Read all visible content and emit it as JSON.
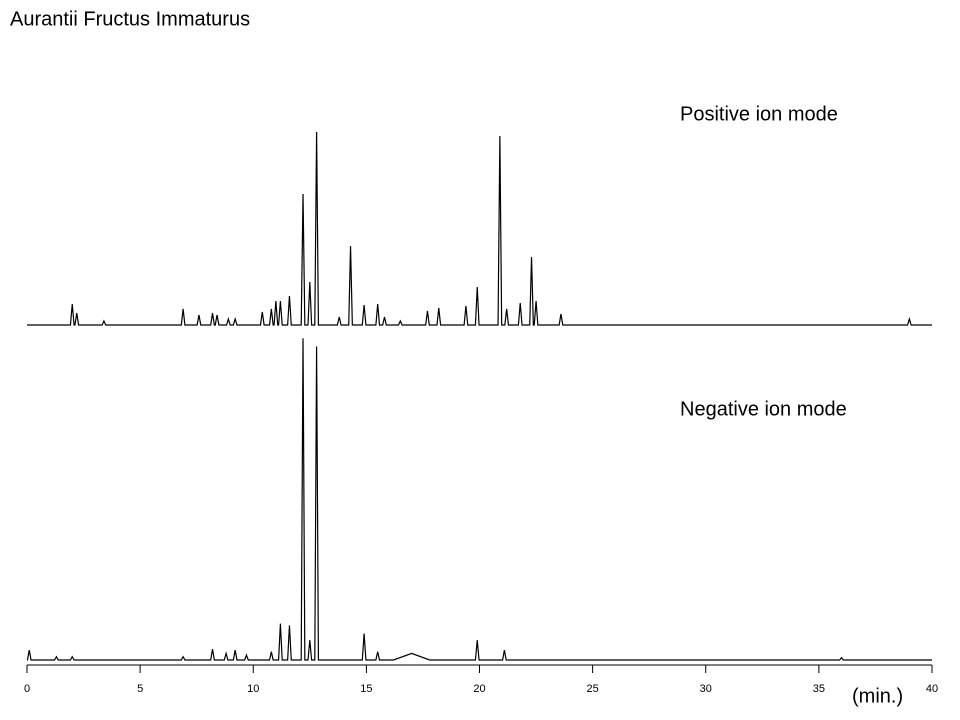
{
  "chart_data": {
    "type": "line",
    "title": "Aurantii  Fructus  Immaturus",
    "x_label": "(min.)",
    "xlim": [
      0,
      40
    ],
    "xticks": [
      0,
      5,
      10,
      15,
      20,
      25,
      30,
      35,
      40
    ],
    "ylim": [
      0,
      100
    ],
    "series": [
      {
        "name": "Positive ion mode",
        "color": "#000000",
        "x": [
          0,
          1.92,
          2,
          2.08,
          2.12,
          2.2,
          2.28,
          3.32,
          3.4,
          3.48,
          6.82,
          6.9,
          6.98,
          7.52,
          7.6,
          7.68,
          8.12,
          8.2,
          8.28,
          8.32,
          8.4,
          8.48,
          8.82,
          8.9,
          8.98,
          9.12,
          9.2,
          9.28,
          10.32,
          10.4,
          10.48,
          10.72,
          10.8,
          10.88,
          10.92,
          11,
          11.08,
          11.12,
          11.2,
          11.28,
          11.52,
          11.6,
          11.68,
          12.12,
          12.2,
          12.28,
          12.42,
          12.5,
          12.58,
          12.72,
          12.8,
          12.88,
          13.72,
          13.8,
          13.88,
          14.22,
          14.3,
          14.38,
          14.82,
          14.9,
          14.98,
          15.42,
          15.5,
          15.58,
          15.72,
          15.8,
          15.88,
          16.42,
          16.5,
          16.58,
          17.62,
          17.7,
          17.78,
          18.12,
          18.2,
          18.28,
          19.32,
          19.4,
          19.48,
          19.82,
          19.9,
          19.98,
          20.82,
          20.9,
          20.98,
          21.12,
          21.2,
          21.28,
          21.72,
          21.8,
          21.88,
          22.22,
          22.3,
          22.38,
          22.42,
          22.5,
          22.58,
          23.52,
          23.6,
          23.68,
          38.92,
          39,
          39.08,
          40
        ],
        "values": [
          0,
          0,
          10.5,
          0,
          0,
          6,
          0,
          0,
          2,
          0,
          0,
          8,
          0,
          0,
          5,
          0,
          0,
          6,
          0,
          0,
          5,
          0,
          0,
          3,
          0,
          0,
          3,
          0,
          0,
          6.5,
          0,
          0,
          8,
          0,
          0,
          12,
          0,
          0,
          12,
          0,
          0,
          14.5,
          0,
          0,
          65.5,
          0,
          0,
          21.5,
          0,
          0,
          96.5,
          0,
          0,
          4,
          0,
          0,
          39.5,
          0,
          0,
          10,
          0,
          0,
          10.5,
          0,
          0,
          4,
          0,
          0,
          2,
          0,
          0,
          7,
          0,
          0,
          8.5,
          0,
          0,
          9.5,
          0,
          0,
          19,
          0,
          0,
          94.5,
          0,
          0,
          8,
          0,
          0,
          11,
          0,
          0,
          34,
          0,
          0,
          12,
          0,
          0,
          5.5,
          0,
          0,
          3,
          0,
          0
        ]
      },
      {
        "name": "Negative ion mode",
        "color": "#000000",
        "x": [
          0,
          0.02,
          0.1,
          0.18,
          1.22,
          1.3,
          1.38,
          1.92,
          2,
          2.08,
          6.82,
          6.9,
          6.98,
          8.12,
          8.2,
          8.28,
          8.72,
          8.8,
          8.88,
          9.12,
          9.2,
          9.28,
          9.62,
          9.7,
          9.78,
          10.72,
          10.8,
          10.88,
          11.12,
          11.2,
          11.28,
          11.52,
          11.6,
          11.68,
          12.12,
          12.2,
          12.28,
          12.42,
          12.5,
          12.58,
          12.72,
          12.8,
          12.88,
          14.82,
          14.9,
          14.98,
          15.42,
          15.5,
          15.58,
          16.2,
          17,
          17.8,
          19.82,
          19.9,
          19.98,
          21.02,
          21.1,
          21.18,
          35.92,
          36,
          36.08,
          40
        ],
        "values": [
          0,
          0,
          3,
          0,
          0,
          1,
          0,
          0,
          1,
          0,
          0,
          1,
          0,
          0,
          3.3,
          0,
          0,
          2,
          0,
          0,
          3,
          0,
          0,
          1.5,
          0,
          0,
          2.5,
          0,
          0,
          11,
          0,
          0,
          10.5,
          0,
          0,
          97.5,
          0,
          0,
          6,
          0,
          0,
          95,
          0,
          0,
          8,
          0,
          0,
          2.5,
          0,
          0,
          2,
          0,
          0,
          6,
          0,
          0,
          3,
          0,
          0,
          0.7,
          0,
          0
        ]
      }
    ]
  }
}
